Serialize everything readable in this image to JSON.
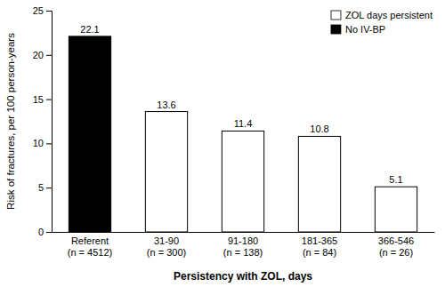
{
  "chart_data": {
    "type": "bar",
    "xlabel": "Persistency with ZOL, days",
    "ylabel": "Risk of fractures, per 100 person-years",
    "categories": [
      "Referent\n(n = 4512)",
      "31-90\n(n = 300)",
      "91-180\n(n = 138)",
      "181-365\n(n = 84)",
      "366-546\n(n = 26)"
    ],
    "series": [
      {
        "name": "ZOL days persistent",
        "color": "#ffffff",
        "values": [
          null,
          13.6,
          11.4,
          10.8,
          5.1
        ]
      },
      {
        "name": "No IV-BP",
        "color": "#000000",
        "values": [
          22.1,
          null,
          null,
          null,
          null
        ]
      }
    ],
    "ylim": [
      0,
      25
    ],
    "yticks": [
      0,
      5,
      10,
      15,
      20,
      25
    ],
    "grid": false,
    "legend": "upper right",
    "data_labels": true
  }
}
